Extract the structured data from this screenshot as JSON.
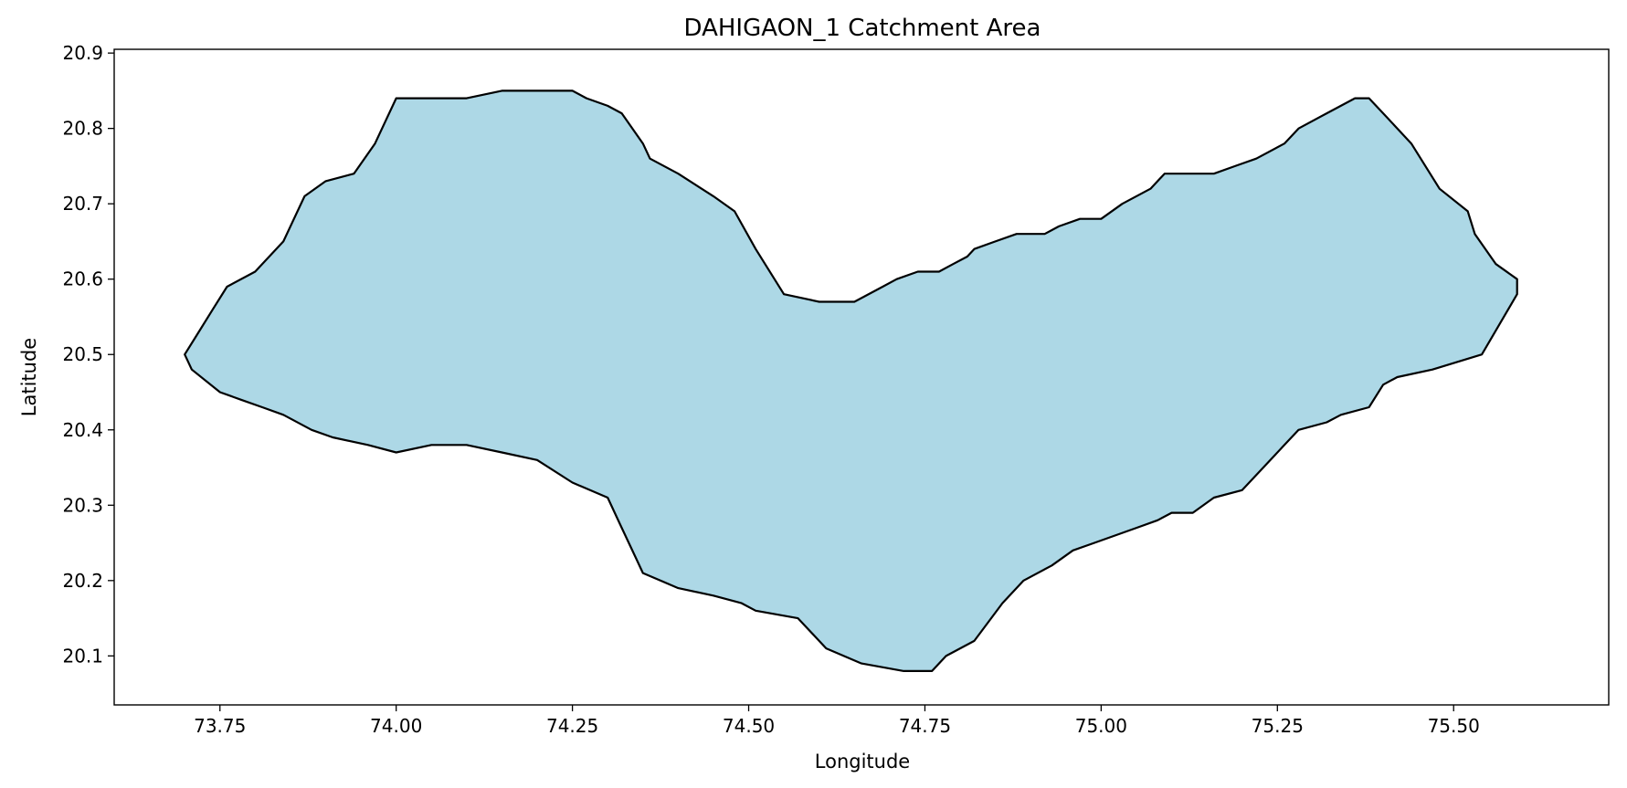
{
  "chart_data": {
    "type": "area",
    "title": "DAHIGAON_1 Catchment Area",
    "xlabel": "Longitude",
    "ylabel": "Latitude",
    "xlim": [
      73.6,
      75.72
    ],
    "ylim": [
      20.035,
      20.905
    ],
    "xticks": [
      "73.75",
      "74.00",
      "74.25",
      "74.50",
      "74.75",
      "75.00",
      "75.25",
      "75.50"
    ],
    "yticks": [
      "20.1",
      "20.2",
      "20.3",
      "20.4",
      "20.5",
      "20.6",
      "20.7",
      "20.8",
      "20.9"
    ],
    "grid": false,
    "fill_color": "#add8e6",
    "edge_color": "#000000",
    "series": [
      {
        "x": [
          73.7,
          73.72,
          73.74,
          73.76,
          73.8,
          73.84,
          73.87,
          73.9,
          73.94,
          73.97,
          74.0,
          74.05,
          74.1,
          74.15,
          74.2,
          74.25,
          74.27,
          74.3,
          74.32,
          74.35,
          74.36,
          74.4,
          74.45,
          74.48,
          74.51,
          74.55,
          74.6,
          74.65,
          74.69,
          74.71,
          74.74,
          74.77,
          74.79,
          74.81,
          74.82,
          74.85,
          74.88,
          74.92,
          74.94,
          74.97,
          75.0,
          75.03,
          75.07,
          75.09,
          75.13,
          75.16,
          75.19,
          75.22,
          75.26,
          75.28,
          75.32,
          75.36,
          75.38,
          75.4,
          75.44,
          75.48,
          75.52,
          75.53,
          75.56,
          75.59,
          75.59,
          75.54,
          75.47,
          75.42,
          75.4,
          75.38,
          75.34,
          75.32,
          75.28,
          75.26,
          75.23,
          75.2,
          75.16,
          75.13,
          75.1,
          75.08,
          75.05,
          74.99,
          74.96,
          74.93,
          74.89,
          74.86,
          74.82,
          74.78,
          74.76,
          74.72,
          74.66,
          74.61,
          74.57,
          74.51,
          74.49,
          74.45,
          74.4,
          74.35,
          74.34,
          74.32,
          74.3,
          74.25,
          74.2,
          74.15,
          74.1,
          74.05,
          74.0,
          73.96,
          73.91,
          73.88,
          73.84,
          73.81,
          73.78,
          73.75,
          73.71,
          73.7
        ],
        "y": [
          20.5,
          20.53,
          20.56,
          20.59,
          20.61,
          20.65,
          20.71,
          20.73,
          20.74,
          20.78,
          20.84,
          20.84,
          20.84,
          20.85,
          20.85,
          20.85,
          20.84,
          20.83,
          20.82,
          20.78,
          20.76,
          20.74,
          20.71,
          20.69,
          20.64,
          20.58,
          20.57,
          20.57,
          20.59,
          20.6,
          20.61,
          20.61,
          20.62,
          20.63,
          20.64,
          20.65,
          20.66,
          20.66,
          20.67,
          20.68,
          20.68,
          20.7,
          20.72,
          20.74,
          20.74,
          20.74,
          20.75,
          20.76,
          20.78,
          20.8,
          20.82,
          20.84,
          20.84,
          20.82,
          20.78,
          20.72,
          20.69,
          20.66,
          20.62,
          20.6,
          20.58,
          20.5,
          20.48,
          20.47,
          20.46,
          20.43,
          20.42,
          20.41,
          20.4,
          20.38,
          20.35,
          20.32,
          20.31,
          20.29,
          20.29,
          20.28,
          20.27,
          20.25,
          20.24,
          20.22,
          20.2,
          20.17,
          20.12,
          20.1,
          20.08,
          20.08,
          20.09,
          20.11,
          20.15,
          20.16,
          20.17,
          20.18,
          20.19,
          20.21,
          20.23,
          20.27,
          20.31,
          20.33,
          20.36,
          20.37,
          20.38,
          20.38,
          20.37,
          20.38,
          20.39,
          20.4,
          20.42,
          20.43,
          20.44,
          20.45,
          20.48,
          20.5
        ]
      }
    ]
  }
}
